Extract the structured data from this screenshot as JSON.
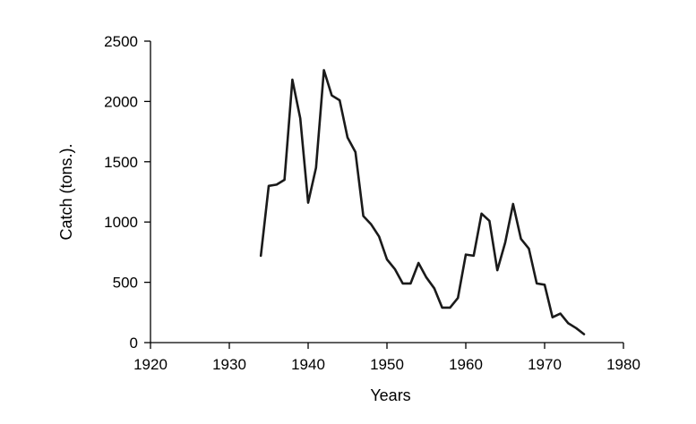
{
  "chart_data": {
    "type": "line",
    "title": "",
    "xlabel": "Years",
    "ylabel": "Catch (tons.).",
    "xlim": [
      1920,
      1980
    ],
    "ylim": [
      0,
      2500
    ],
    "xticks": [
      1920,
      1930,
      1940,
      1950,
      1960,
      1970,
      1980
    ],
    "yticks": [
      0,
      500,
      1000,
      1500,
      2000,
      2500
    ],
    "grid": false,
    "legend": "none",
    "series": [
      {
        "color": "#1a1a1a",
        "x": [
          1934,
          1935,
          1936,
          1937,
          1938,
          1939,
          1940,
          1941,
          1942,
          1943,
          1944,
          1945,
          1946,
          1947,
          1948,
          1949,
          1950,
          1951,
          1952,
          1953,
          1954,
          1955,
          1956,
          1957,
          1958,
          1959,
          1960,
          1961,
          1962,
          1963,
          1964,
          1965,
          1966,
          1967,
          1968,
          1969,
          1970,
          1971,
          1972,
          1973,
          1974,
          1975
        ],
        "y": [
          720,
          1300,
          1310,
          1350,
          2180,
          1860,
          1160,
          1450,
          2260,
          2050,
          2010,
          1700,
          1580,
          1050,
          980,
          880,
          690,
          610,
          490,
          490,
          660,
          540,
          450,
          290,
          290,
          370,
          730,
          720,
          1070,
          1010,
          600,
          830,
          1150,
          860,
          780,
          490,
          480,
          210,
          240,
          160,
          120,
          70
        ]
      }
    ]
  }
}
